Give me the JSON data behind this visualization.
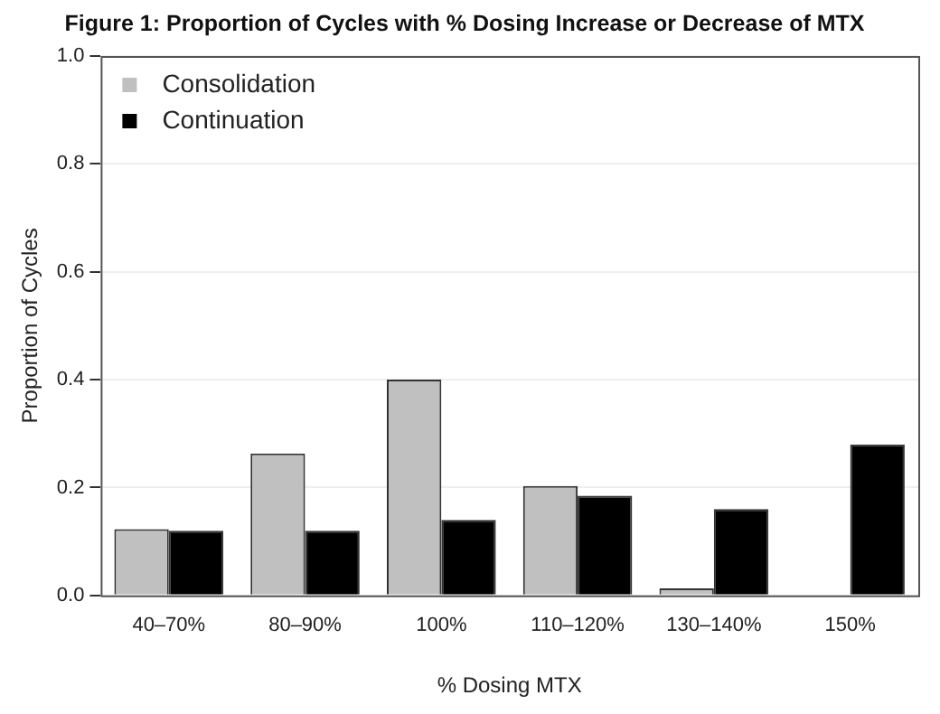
{
  "chart_data": {
    "type": "bar",
    "title": "Figure 1: Proportion of Cycles with % Dosing Increase or Decrease of MTX",
    "xlabel": "% Dosing MTX",
    "ylabel": "Proportion of Cycles",
    "categories": [
      "40–70%",
      "80–90%",
      "100%",
      "110–120%",
      "130–140%",
      "150%"
    ],
    "series": [
      {
        "name": "Consolidation",
        "color": "#c0c0c0",
        "values": [
          0.123,
          0.263,
          0.4,
          0.203,
          0.013,
          0
        ]
      },
      {
        "name": "Continuation",
        "color": "#000000",
        "values": [
          0.12,
          0.12,
          0.14,
          0.185,
          0.16,
          0.28
        ]
      }
    ],
    "ylim": [
      0,
      1
    ],
    "yticks": [
      {
        "value": 0,
        "label": "0.0"
      },
      {
        "value": 0.2,
        "label": "0.2"
      },
      {
        "value": 0.4,
        "label": "0.4"
      },
      {
        "value": 0.6,
        "label": "0.6"
      },
      {
        "value": 0.8,
        "label": "0.8"
      },
      {
        "value": 1,
        "label": "1.0"
      }
    ],
    "grid": "y",
    "legend": "top left"
  }
}
